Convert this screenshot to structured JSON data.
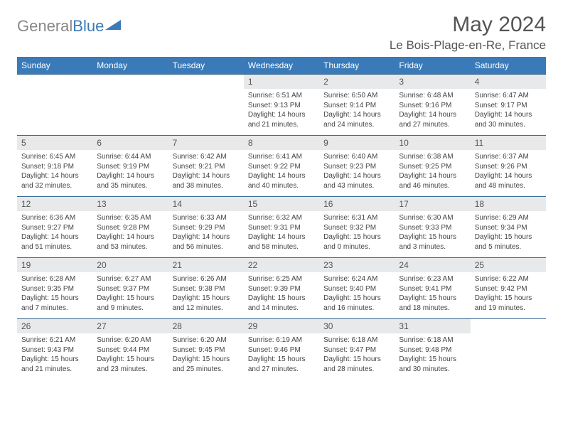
{
  "brand": {
    "part1": "General",
    "part2": "Blue"
  },
  "title": "May 2024",
  "location": "Le Bois-Plage-en-Re, France",
  "colors": {
    "header_bg": "#3a7ab8",
    "row_border": "#3a6a95",
    "daynum_bg": "#e8e9ea",
    "text": "#555555"
  },
  "weekdays": [
    "Sunday",
    "Monday",
    "Tuesday",
    "Wednesday",
    "Thursday",
    "Friday",
    "Saturday"
  ],
  "first_weekday_index": 3,
  "days": [
    {
      "n": "1",
      "sr": "6:51 AM",
      "ss": "9:13 PM",
      "dl": "14 hours and 21 minutes."
    },
    {
      "n": "2",
      "sr": "6:50 AM",
      "ss": "9:14 PM",
      "dl": "14 hours and 24 minutes."
    },
    {
      "n": "3",
      "sr": "6:48 AM",
      "ss": "9:16 PM",
      "dl": "14 hours and 27 minutes."
    },
    {
      "n": "4",
      "sr": "6:47 AM",
      "ss": "9:17 PM",
      "dl": "14 hours and 30 minutes."
    },
    {
      "n": "5",
      "sr": "6:45 AM",
      "ss": "9:18 PM",
      "dl": "14 hours and 32 minutes."
    },
    {
      "n": "6",
      "sr": "6:44 AM",
      "ss": "9:19 PM",
      "dl": "14 hours and 35 minutes."
    },
    {
      "n": "7",
      "sr": "6:42 AM",
      "ss": "9:21 PM",
      "dl": "14 hours and 38 minutes."
    },
    {
      "n": "8",
      "sr": "6:41 AM",
      "ss": "9:22 PM",
      "dl": "14 hours and 40 minutes."
    },
    {
      "n": "9",
      "sr": "6:40 AM",
      "ss": "9:23 PM",
      "dl": "14 hours and 43 minutes."
    },
    {
      "n": "10",
      "sr": "6:38 AM",
      "ss": "9:25 PM",
      "dl": "14 hours and 46 minutes."
    },
    {
      "n": "11",
      "sr": "6:37 AM",
      "ss": "9:26 PM",
      "dl": "14 hours and 48 minutes."
    },
    {
      "n": "12",
      "sr": "6:36 AM",
      "ss": "9:27 PM",
      "dl": "14 hours and 51 minutes."
    },
    {
      "n": "13",
      "sr": "6:35 AM",
      "ss": "9:28 PM",
      "dl": "14 hours and 53 minutes."
    },
    {
      "n": "14",
      "sr": "6:33 AM",
      "ss": "9:29 PM",
      "dl": "14 hours and 56 minutes."
    },
    {
      "n": "15",
      "sr": "6:32 AM",
      "ss": "9:31 PM",
      "dl": "14 hours and 58 minutes."
    },
    {
      "n": "16",
      "sr": "6:31 AM",
      "ss": "9:32 PM",
      "dl": "15 hours and 0 minutes."
    },
    {
      "n": "17",
      "sr": "6:30 AM",
      "ss": "9:33 PM",
      "dl": "15 hours and 3 minutes."
    },
    {
      "n": "18",
      "sr": "6:29 AM",
      "ss": "9:34 PM",
      "dl": "15 hours and 5 minutes."
    },
    {
      "n": "19",
      "sr": "6:28 AM",
      "ss": "9:35 PM",
      "dl": "15 hours and 7 minutes."
    },
    {
      "n": "20",
      "sr": "6:27 AM",
      "ss": "9:37 PM",
      "dl": "15 hours and 9 minutes."
    },
    {
      "n": "21",
      "sr": "6:26 AM",
      "ss": "9:38 PM",
      "dl": "15 hours and 12 minutes."
    },
    {
      "n": "22",
      "sr": "6:25 AM",
      "ss": "9:39 PM",
      "dl": "15 hours and 14 minutes."
    },
    {
      "n": "23",
      "sr": "6:24 AM",
      "ss": "9:40 PM",
      "dl": "15 hours and 16 minutes."
    },
    {
      "n": "24",
      "sr": "6:23 AM",
      "ss": "9:41 PM",
      "dl": "15 hours and 18 minutes."
    },
    {
      "n": "25",
      "sr": "6:22 AM",
      "ss": "9:42 PM",
      "dl": "15 hours and 19 minutes."
    },
    {
      "n": "26",
      "sr": "6:21 AM",
      "ss": "9:43 PM",
      "dl": "15 hours and 21 minutes."
    },
    {
      "n": "27",
      "sr": "6:20 AM",
      "ss": "9:44 PM",
      "dl": "15 hours and 23 minutes."
    },
    {
      "n": "28",
      "sr": "6:20 AM",
      "ss": "9:45 PM",
      "dl": "15 hours and 25 minutes."
    },
    {
      "n": "29",
      "sr": "6:19 AM",
      "ss": "9:46 PM",
      "dl": "15 hours and 27 minutes."
    },
    {
      "n": "30",
      "sr": "6:18 AM",
      "ss": "9:47 PM",
      "dl": "15 hours and 28 minutes."
    },
    {
      "n": "31",
      "sr": "6:18 AM",
      "ss": "9:48 PM",
      "dl": "15 hours and 30 minutes."
    }
  ],
  "labels": {
    "sunrise": "Sunrise:",
    "sunset": "Sunset:",
    "daylight": "Daylight:"
  }
}
